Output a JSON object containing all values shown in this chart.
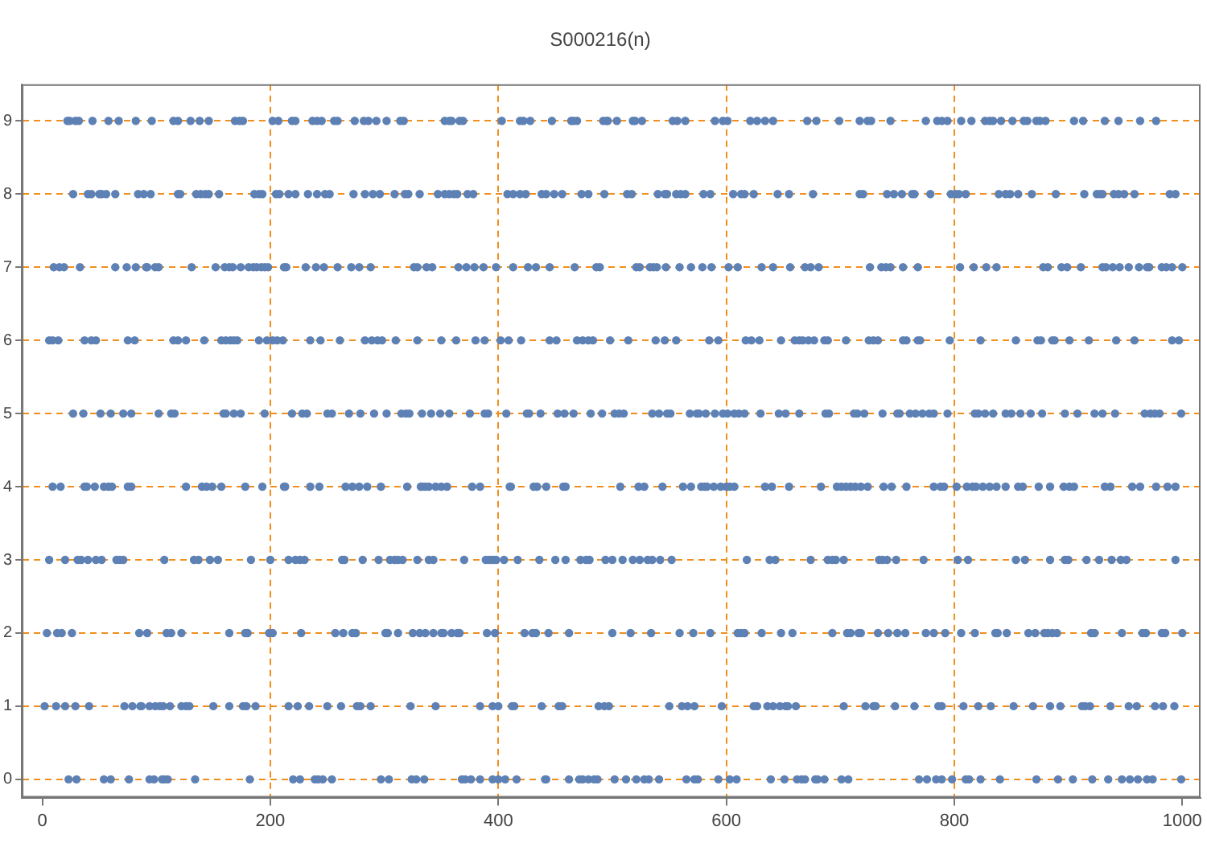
{
  "chart_data": {
    "type": "scatter",
    "title": "S000216(n)",
    "xlim": [
      -18,
      1016
    ],
    "ylim": [
      -0.25,
      9.5
    ],
    "xticks": [
      0,
      200,
      400,
      600,
      800,
      1000
    ],
    "yticks": [
      0,
      1,
      2,
      3,
      4,
      5,
      6,
      7,
      8,
      9
    ],
    "grid": true,
    "legend": false,
    "marker": "circle",
    "series": [
      {
        "color": "#5e81b5",
        "x": [
          22,
          24,
          29,
          32,
          44,
          58,
          67,
          82,
          96,
          115,
          119,
          130,
          138,
          146,
          169,
          173,
          176,
          202,
          207,
          219,
          222,
          237,
          241,
          245,
          256,
          259,
          274,
          282,
          286,
          293,
          302,
          314,
          317,
          353,
          357,
          359,
          366,
          369,
          403,
          419,
          422,
          428,
          447,
          464,
          466,
          469,
          492,
          495,
          496,
          504,
          518,
          520,
          526,
          553,
          557,
          564,
          590,
          597,
          601,
          621,
          627,
          634,
          641,
          671,
          679,
          699,
          717,
          724,
          727,
          744,
          775,
          785,
          789,
          794,
          806,
          815,
          827,
          831,
          834,
          841,
          851,
          861,
          864,
          872,
          875,
          880,
          905,
          913,
          932,
          944,
          963,
          977
        ],
        "values": [
          9,
          9,
          9,
          9,
          9,
          9,
          9,
          9,
          9,
          9,
          9,
          9,
          9,
          9,
          9,
          9,
          9,
          9,
          9,
          9,
          9,
          9,
          9,
          9,
          9,
          9,
          9,
          9,
          9,
          9,
          9,
          9,
          9,
          9,
          9,
          9,
          9,
          9,
          9,
          9,
          9,
          9,
          9,
          9,
          9,
          9,
          9,
          9,
          9,
          9,
          9,
          9,
          9,
          9,
          9,
          9,
          9,
          9,
          9,
          9,
          9,
          9,
          9,
          9,
          9,
          9,
          9,
          9,
          9,
          9,
          9,
          9,
          9,
          9,
          9,
          9,
          9,
          9,
          9,
          9,
          9,
          9,
          9,
          9,
          9,
          9,
          9,
          9,
          9,
          9,
          9,
          9
        ]
      },
      {
        "color": "#5e81b5",
        "x": [
          27,
          40,
          43,
          50,
          52,
          56,
          64,
          84,
          89,
          95,
          119,
          121,
          135,
          139,
          143,
          146,
          155,
          186,
          190,
          193,
          205,
          208,
          216,
          222,
          233,
          241,
          248,
          252,
          273,
          283,
          290,
          296,
          309,
          318,
          321,
          331,
          347,
          353,
          357,
          361,
          364,
          373,
          378,
          408,
          413,
          419,
          424,
          438,
          442,
          449,
          456,
          473,
          479,
          493,
          513,
          517,
          540,
          546,
          548,
          556,
          560,
          564,
          580,
          586,
          606,
          613,
          616,
          624,
          645,
          655,
          676,
          717,
          720,
          741,
          747,
          754,
          763,
          765,
          779,
          797,
          801,
          804,
          810,
          839,
          845,
          849,
          856,
          868,
          889,
          914,
          925,
          928,
          930,
          940,
          944,
          949,
          958,
          989,
          994
        ],
        "values": [
          8,
          8,
          8,
          8,
          8,
          8,
          8,
          8,
          8,
          8,
          8,
          8,
          8,
          8,
          8,
          8,
          8,
          8,
          8,
          8,
          8,
          8,
          8,
          8,
          8,
          8,
          8,
          8,
          8,
          8,
          8,
          8,
          8,
          8,
          8,
          8,
          8,
          8,
          8,
          8,
          8,
          8,
          8,
          8,
          8,
          8,
          8,
          8,
          8,
          8,
          8,
          8,
          8,
          8,
          8,
          8,
          8,
          8,
          8,
          8,
          8,
          8,
          8,
          8,
          8,
          8,
          8,
          8,
          8,
          8,
          8,
          8,
          8,
          8,
          8,
          8,
          8,
          8,
          8,
          8,
          8,
          8,
          8,
          8,
          8,
          8,
          8,
          8,
          8,
          8,
          8,
          8,
          8,
          8,
          8,
          8,
          8,
          8,
          8
        ]
      },
      {
        "color": "#5e81b5",
        "x": [
          10,
          15,
          19,
          33,
          64,
          74,
          82,
          91,
          92,
          99,
          102,
          131,
          152,
          160,
          164,
          167,
          174,
          181,
          185,
          188,
          192,
          195,
          198,
          212,
          214,
          231,
          240,
          247,
          259,
          271,
          278,
          288,
          326,
          329,
          337,
          342,
          365,
          372,
          379,
          387,
          398,
          413,
          426,
          433,
          445,
          467,
          486,
          489,
          521,
          524,
          533,
          536,
          539,
          547,
          559,
          569,
          579,
          587,
          602,
          610,
          631,
          641,
          656,
          669,
          674,
          681,
          726,
          736,
          740,
          744,
          755,
          768,
          805,
          817,
          828,
          837,
          878,
          882,
          894,
          899,
          911,
          930,
          933,
          939,
          945,
          953,
          962,
          969,
          971,
          982,
          986,
          991,
          1000
        ],
        "values": [
          7,
          7,
          7,
          7,
          7,
          7,
          7,
          7,
          7,
          7,
          7,
          7,
          7,
          7,
          7,
          7,
          7,
          7,
          7,
          7,
          7,
          7,
          7,
          7,
          7,
          7,
          7,
          7,
          7,
          7,
          7,
          7,
          7,
          7,
          7,
          7,
          7,
          7,
          7,
          7,
          7,
          7,
          7,
          7,
          7,
          7,
          7,
          7,
          7,
          7,
          7,
          7,
          7,
          7,
          7,
          7,
          7,
          7,
          7,
          7,
          7,
          7,
          7,
          7,
          7,
          7,
          7,
          7,
          7,
          7,
          7,
          7,
          7,
          7,
          7,
          7,
          7,
          7,
          7,
          7,
          7,
          7,
          7,
          7,
          7,
          7,
          7,
          7,
          7,
          7,
          7,
          7,
          7
        ]
      },
      {
        "color": "#5e81b5",
        "x": [
          6,
          9,
          14,
          37,
          43,
          47,
          75,
          81,
          115,
          119,
          126,
          142,
          157,
          161,
          165,
          168,
          171,
          190,
          197,
          202,
          206,
          211,
          235,
          244,
          261,
          283,
          289,
          294,
          298,
          310,
          329,
          350,
          363,
          380,
          388,
          402,
          409,
          420,
          445,
          451,
          469,
          474,
          479,
          483,
          498,
          514,
          538,
          546,
          556,
          585,
          593,
          617,
          622,
          629,
          648,
          660,
          664,
          667,
          672,
          677,
          686,
          689,
          705,
          725,
          729,
          733,
          755,
          758,
          768,
          770,
          796,
          823,
          854,
          873,
          876,
          886,
          888,
          901,
          918,
          942,
          958,
          991,
          997
        ],
        "values": [
          6,
          6,
          6,
          6,
          6,
          6,
          6,
          6,
          6,
          6,
          6,
          6,
          6,
          6,
          6,
          6,
          6,
          6,
          6,
          6,
          6,
          6,
          6,
          6,
          6,
          6,
          6,
          6,
          6,
          6,
          6,
          6,
          6,
          6,
          6,
          6,
          6,
          6,
          6,
          6,
          6,
          6,
          6,
          6,
          6,
          6,
          6,
          6,
          6,
          6,
          6,
          6,
          6,
          6,
          6,
          6,
          6,
          6,
          6,
          6,
          6,
          6,
          6,
          6,
          6,
          6,
          6,
          6,
          6,
          6,
          6,
          6,
          6,
          6,
          6,
          6,
          6,
          6,
          6,
          6,
          6,
          6,
          6
        ]
      },
      {
        "color": "#5e81b5",
        "x": [
          27,
          36,
          51,
          60,
          71,
          78,
          102,
          113,
          116,
          159,
          161,
          168,
          174,
          195,
          219,
          228,
          232,
          250,
          254,
          269,
          279,
          291,
          302,
          315,
          319,
          322,
          333,
          341,
          349,
          357,
          375,
          388,
          391,
          407,
          425,
          427,
          437,
          452,
          458,
          466,
          481,
          491,
          502,
          506,
          510,
          535,
          541,
          548,
          551,
          568,
          574,
          576,
          582,
          590,
          597,
          601,
          607,
          611,
          616,
          630,
          646,
          652,
          664,
          687,
          690,
          712,
          715,
          721,
          737,
          750,
          752,
          761,
          766,
          772,
          778,
          782,
          794,
          818,
          821,
          827,
          834,
          845,
          850,
          858,
          867,
          877,
          897,
          908,
          923,
          930,
          941,
          967,
          972,
          976,
          980,
          999
        ],
        "values": [
          5,
          5,
          5,
          5,
          5,
          5,
          5,
          5,
          5,
          5,
          5,
          5,
          5,
          5,
          5,
          5,
          5,
          5,
          5,
          5,
          5,
          5,
          5,
          5,
          5,
          5,
          5,
          5,
          5,
          5,
          5,
          5,
          5,
          5,
          5,
          5,
          5,
          5,
          5,
          5,
          5,
          5,
          5,
          5,
          5,
          5,
          5,
          5,
          5,
          5,
          5,
          5,
          5,
          5,
          5,
          5,
          5,
          5,
          5,
          5,
          5,
          5,
          5,
          5,
          5,
          5,
          5,
          5,
          5,
          5,
          5,
          5,
          5,
          5,
          5,
          5,
          5,
          5,
          5,
          5,
          5,
          5,
          5,
          5,
          5,
          5,
          5,
          5,
          5,
          5,
          5,
          5,
          5,
          5,
          5,
          5
        ]
      },
      {
        "color": "#5e81b5",
        "x": [
          9,
          16,
          37,
          39,
          46,
          54,
          58,
          61,
          75,
          78,
          126,
          140,
          144,
          149,
          157,
          178,
          193,
          212,
          213,
          235,
          243,
          266,
          272,
          278,
          285,
          297,
          320,
          332,
          333,
          336,
          339,
          345,
          350,
          355,
          377,
          384,
          410,
          411,
          431,
          434,
          442,
          457,
          459,
          507,
          523,
          528,
          544,
          562,
          569,
          578,
          581,
          583,
          589,
          595,
          600,
          603,
          607,
          634,
          640,
          655,
          683,
          697,
          701,
          705,
          709,
          713,
          718,
          724,
          738,
          745,
          758,
          782,
          788,
          791,
          802,
          811,
          816,
          819,
          825,
          831,
          837,
          845,
          856,
          860,
          874,
          884,
          896,
          901,
          905,
          932,
          937,
          956,
          963,
          977,
          987,
          994
        ],
        "values": [
          4,
          4,
          4,
          4,
          4,
          4,
          4,
          4,
          4,
          4,
          4,
          4,
          4,
          4,
          4,
          4,
          4,
          4,
          4,
          4,
          4,
          4,
          4,
          4,
          4,
          4,
          4,
          4,
          4,
          4,
          4,
          4,
          4,
          4,
          4,
          4,
          4,
          4,
          4,
          4,
          4,
          4,
          4,
          4,
          4,
          4,
          4,
          4,
          4,
          4,
          4,
          4,
          4,
          4,
          4,
          4,
          4,
          4,
          4,
          4,
          4,
          4,
          4,
          4,
          4,
          4,
          4,
          4,
          4,
          4,
          4,
          4,
          4,
          4,
          4,
          4,
          4,
          4,
          4,
          4,
          4,
          4,
          4,
          4,
          4,
          4,
          4,
          4,
          4,
          4,
          4,
          4,
          4,
          4,
          4,
          4
        ]
      },
      {
        "color": "#5e81b5",
        "x": [
          6,
          20,
          31,
          34,
          40,
          47,
          52,
          65,
          68,
          71,
          107,
          133,
          137,
          147,
          154,
          183,
          200,
          216,
          222,
          226,
          230,
          263,
          265,
          281,
          295,
          305,
          309,
          312,
          316,
          329,
          339,
          343,
          370,
          389,
          392,
          395,
          398,
          405,
          417,
          436,
          450,
          459,
          472,
          477,
          480,
          494,
          500,
          509,
          518,
          524,
          531,
          535,
          542,
          552,
          618,
          638,
          643,
          674,
          689,
          693,
          696,
          703,
          734,
          737,
          741,
          749,
          773,
          803,
          812,
          854,
          862,
          884,
          897,
          900,
          916,
          927,
          938,
          946,
          951,
          994
        ],
        "values": [
          3,
          3,
          3,
          3,
          3,
          3,
          3,
          3,
          3,
          3,
          3,
          3,
          3,
          3,
          3,
          3,
          3,
          3,
          3,
          3,
          3,
          3,
          3,
          3,
          3,
          3,
          3,
          3,
          3,
          3,
          3,
          3,
          3,
          3,
          3,
          3,
          3,
          3,
          3,
          3,
          3,
          3,
          3,
          3,
          3,
          3,
          3,
          3,
          3,
          3,
          3,
          3,
          3,
          3,
          3,
          3,
          3,
          3,
          3,
          3,
          3,
          3,
          3,
          3,
          3,
          3,
          3,
          3,
          3,
          3,
          3,
          3,
          3,
          3,
          3,
          3,
          3,
          3,
          3,
          3
        ]
      },
      {
        "color": "#5e81b5",
        "x": [
          4,
          13,
          17,
          26,
          85,
          92,
          109,
          113,
          122,
          164,
          178,
          180,
          199,
          202,
          227,
          257,
          264,
          272,
          275,
          301,
          303,
          312,
          325,
          331,
          336,
          343,
          350,
          352,
          359,
          364,
          366,
          390,
          397,
          423,
          430,
          433,
          444,
          462,
          500,
          516,
          534,
          559,
          571,
          586,
          610,
          613,
          616,
          631,
          648,
          658,
          693,
          706,
          709,
          716,
          718,
          733,
          742,
          750,
          757,
          775,
          782,
          792,
          806,
          818,
          836,
          838,
          846,
          865,
          871,
          879,
          882,
          886,
          890,
          920,
          923,
          947,
          965,
          968,
          982,
          985,
          1000
        ],
        "values": [
          2,
          2,
          2,
          2,
          2,
          2,
          2,
          2,
          2,
          2,
          2,
          2,
          2,
          2,
          2,
          2,
          2,
          2,
          2,
          2,
          2,
          2,
          2,
          2,
          2,
          2,
          2,
          2,
          2,
          2,
          2,
          2,
          2,
          2,
          2,
          2,
          2,
          2,
          2,
          2,
          2,
          2,
          2,
          2,
          2,
          2,
          2,
          2,
          2,
          2,
          2,
          2,
          2,
          2,
          2,
          2,
          2,
          2,
          2,
          2,
          2,
          2,
          2,
          2,
          2,
          2,
          2,
          2,
          2,
          2,
          2,
          2,
          2,
          2,
          2,
          2,
          2,
          2,
          2,
          2,
          2
        ]
      },
      {
        "color": "#5e81b5",
        "x": [
          2,
          12,
          20,
          29,
          41,
          72,
          79,
          86,
          87,
          94,
          99,
          103,
          106,
          112,
          122,
          126,
          129,
          150,
          164,
          176,
          179,
          187,
          216,
          224,
          234,
          250,
          262,
          276,
          279,
          288,
          323,
          345,
          384,
          395,
          400,
          412,
          414,
          438,
          453,
          456,
          488,
          493,
          497,
          550,
          561,
          566,
          572,
          596,
          624,
          627,
          636,
          641,
          647,
          652,
          654,
          661,
          703,
          722,
          729,
          731,
          748,
          765,
          786,
          789,
          808,
          821,
          832,
          852,
          869,
          884,
          893,
          912,
          915,
          919,
          937,
          953,
          960,
          976,
          983,
          993
        ],
        "values": [
          1,
          1,
          1,
          1,
          1,
          1,
          1,
          1,
          1,
          1,
          1,
          1,
          1,
          1,
          1,
          1,
          1,
          1,
          1,
          1,
          1,
          1,
          1,
          1,
          1,
          1,
          1,
          1,
          1,
          1,
          1,
          1,
          1,
          1,
          1,
          1,
          1,
          1,
          1,
          1,
          1,
          1,
          1,
          1,
          1,
          1,
          1,
          1,
          1,
          1,
          1,
          1,
          1,
          1,
          1,
          1,
          1,
          1,
          1,
          1,
          1,
          1,
          1,
          1,
          1,
          1,
          1,
          1,
          1,
          1,
          1,
          1,
          1,
          1,
          1,
          1,
          1,
          1,
          1,
          1
        ]
      },
      {
        "color": "#5e81b5",
        "x": [
          23,
          30,
          54,
          60,
          76,
          94,
          98,
          105,
          107,
          110,
          134,
          182,
          220,
          226,
          239,
          242,
          246,
          254,
          297,
          304,
          324,
          328,
          335,
          368,
          371,
          376,
          384,
          395,
          400,
          406,
          416,
          441,
          442,
          462,
          471,
          474,
          479,
          484,
          487,
          502,
          512,
          521,
          528,
          532,
          541,
          565,
          572,
          575,
          593,
          603,
          609,
          639,
          651,
          662,
          666,
          669,
          678,
          680,
          686,
          701,
          707,
          769,
          776,
          784,
          789,
          798,
          810,
          813,
          823,
          840,
          872,
          891,
          904,
          921,
          935,
          947,
          954,
          961,
          969,
          974,
          999
        ],
        "values": [
          0,
          0,
          0,
          0,
          0,
          0,
          0,
          0,
          0,
          0,
          0,
          0,
          0,
          0,
          0,
          0,
          0,
          0,
          0,
          0,
          0,
          0,
          0,
          0,
          0,
          0,
          0,
          0,
          0,
          0,
          0,
          0,
          0,
          0,
          0,
          0,
          0,
          0,
          0,
          0,
          0,
          0,
          0,
          0,
          0,
          0,
          0,
          0,
          0,
          0,
          0,
          0,
          0,
          0,
          0,
          0,
          0,
          0,
          0,
          0,
          0,
          0,
          0,
          0,
          0,
          0,
          0,
          0,
          0,
          0,
          0,
          0,
          0,
          0,
          0,
          0,
          0,
          0,
          0,
          0,
          0
        ]
      }
    ]
  }
}
